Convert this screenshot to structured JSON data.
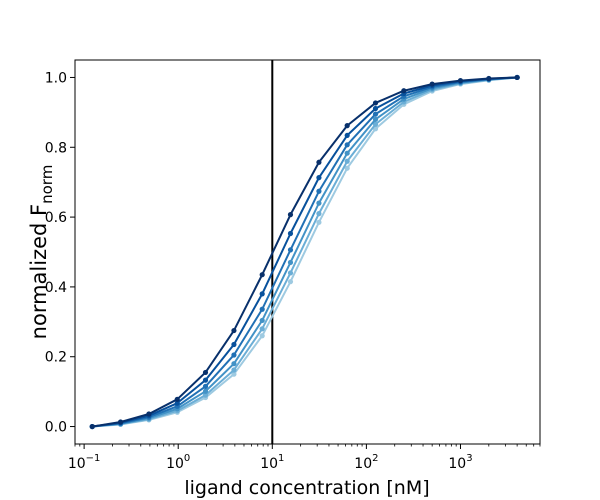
{
  "chart_data": {
    "type": "line",
    "title": "",
    "xlabel": "ligand concentration [nM]",
    "ylabel": "normalized F",
    "ylabel_subscript": "norm",
    "xscale": "log",
    "xlim": [
      0.08,
      7000
    ],
    "ylim": [
      -0.05,
      1.05
    ],
    "x_ticks": [
      {
        "value": 0.1,
        "base": "10",
        "exp": "−1"
      },
      {
        "value": 1,
        "base": "10",
        "exp": "0"
      },
      {
        "value": 10,
        "base": "10",
        "exp": "1"
      },
      {
        "value": 100,
        "base": "10",
        "exp": "2"
      },
      {
        "value": 1000,
        "base": "10",
        "exp": "3"
      }
    ],
    "y_ticks": [
      "0.0",
      "0.2",
      "0.4",
      "0.6",
      "0.8",
      "1.0"
    ],
    "grid": false,
    "vline": {
      "x": 10,
      "color": "#000000"
    },
    "x": [
      0.122,
      0.244,
      0.488,
      0.977,
      1.95,
      3.91,
      7.81,
      15.6,
      31.3,
      62.5,
      125,
      250,
      500,
      1000,
      2000,
      4000
    ],
    "series": [
      {
        "color": "#08306b",
        "values": [
          0.0,
          0.013,
          0.036,
          0.078,
          0.155,
          0.275,
          0.435,
          0.607,
          0.757,
          0.862,
          0.927,
          0.962,
          0.981,
          0.991,
          0.997,
          1.0
        ]
      },
      {
        "color": "#08519c",
        "values": [
          0.0,
          0.011,
          0.031,
          0.067,
          0.133,
          0.235,
          0.38,
          0.553,
          0.713,
          0.834,
          0.911,
          0.954,
          0.977,
          0.989,
          0.996,
          1.0
        ]
      },
      {
        "color": "#2171b5",
        "values": [
          0.0,
          0.009,
          0.027,
          0.058,
          0.115,
          0.205,
          0.336,
          0.506,
          0.674,
          0.807,
          0.895,
          0.946,
          0.973,
          0.987,
          0.995,
          1.0
        ]
      },
      {
        "color": "#4292c6",
        "values": [
          0.0,
          0.008,
          0.024,
          0.051,
          0.101,
          0.18,
          0.304,
          0.47,
          0.64,
          0.783,
          0.88,
          0.938,
          0.969,
          0.985,
          0.994,
          1.0
        ]
      },
      {
        "color": "#6baed6",
        "values": [
          0.0,
          0.007,
          0.021,
          0.045,
          0.09,
          0.162,
          0.28,
          0.44,
          0.61,
          0.76,
          0.866,
          0.93,
          0.965,
          0.983,
          0.993,
          1.0
        ]
      },
      {
        "color": "#9ecae1",
        "values": [
          0.0,
          0.006,
          0.019,
          0.041,
          0.083,
          0.15,
          0.26,
          0.415,
          0.585,
          0.74,
          0.853,
          0.923,
          0.961,
          0.981,
          0.992,
          1.0
        ]
      }
    ]
  }
}
